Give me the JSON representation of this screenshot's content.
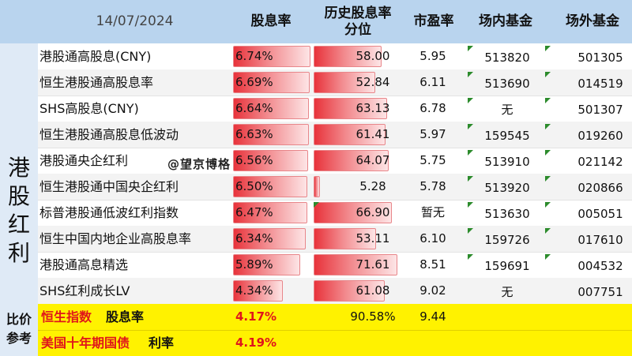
{
  "header": {
    "date": "14/07/2024",
    "col_yield": "股息率",
    "col_pct_line1": "历史股息率",
    "col_pct_line2": "分位",
    "col_pe": "市盈率",
    "col_onsite": "场内基金",
    "col_offsite": "场外基金"
  },
  "side_label": [
    "港",
    "股",
    "红",
    "利"
  ],
  "watermark": "@望京博格",
  "rows": [
    {
      "name": "港股通高股息(CNY)",
      "yield": "6.74%",
      "yield_value": 6.74,
      "pct": "58.00",
      "pct_value": 58.0,
      "pe": "5.95",
      "onsite": "513820",
      "offsite": "501305"
    },
    {
      "name": "恒生港股通高股息率",
      "yield": "6.69%",
      "yield_value": 6.69,
      "pct": "52.84",
      "pct_value": 52.84,
      "pe": "6.11",
      "onsite": "513690",
      "offsite": "014519"
    },
    {
      "name": "SHS高股息(CNY)",
      "yield": "6.64%",
      "yield_value": 6.64,
      "pct": "63.13",
      "pct_value": 63.13,
      "pe": "6.78",
      "onsite": "无",
      "offsite": "501307"
    },
    {
      "name": "恒生港股通高股息低波动",
      "yield": "6.63%",
      "yield_value": 6.63,
      "pct": "61.41",
      "pct_value": 61.41,
      "pe": "5.97",
      "onsite": "159545",
      "offsite": "019260"
    },
    {
      "name": "港股通央企红利",
      "yield": "6.56%",
      "yield_value": 6.56,
      "pct": "64.07",
      "pct_value": 64.07,
      "pe": "5.75",
      "onsite": "513910",
      "offsite": "021142"
    },
    {
      "name": "恒生港股通中国央企红利",
      "yield": "6.50%",
      "yield_value": 6.5,
      "pct": "5.28",
      "pct_value": 5.28,
      "pe": "5.78",
      "onsite": "513920",
      "offsite": "020866"
    },
    {
      "name": "标普港股通低波红利指数",
      "yield": "6.47%",
      "yield_value": 6.47,
      "pct": "66.90",
      "pct_value": 66.9,
      "pe": "暂无",
      "onsite": "513630",
      "offsite": "005051"
    },
    {
      "name": "恒生中国内地企业高股息率",
      "yield": "6.34%",
      "yield_value": 6.34,
      "pct": "53.11",
      "pct_value": 53.11,
      "pe": "6.10",
      "onsite": "159726",
      "offsite": "017610"
    },
    {
      "name": "港股通高息精选",
      "yield": "5.89%",
      "yield_value": 5.89,
      "pct": "71.61",
      "pct_value": 71.61,
      "pe": "8.51",
      "onsite": "159691",
      "offsite": "004532"
    },
    {
      "name": "SHS红利成长LV",
      "yield": "4.34%",
      "yield_value": 4.34,
      "pct": "61.08",
      "pct_value": 61.08,
      "pe": "9.02",
      "onsite": "无",
      "offsite": "007751"
    }
  ],
  "reference": {
    "side_line1": "比价",
    "side_line2": "参考",
    "hsi_name": "恒生指数",
    "hsi_label": "股息率",
    "hsi_yield": "4.17%",
    "hsi_pct": "90.58%",
    "hsi_pe": "9.44",
    "bond_name": "美国十年期国债",
    "bond_label": "利率",
    "bond_rate": "4.19%"
  },
  "colors": {
    "header_bg": "#b9d4ee",
    "side_bg": "#dfeaf6",
    "bar_red": "#e8333b",
    "reference_bg": "#fff200",
    "reference_red": "#e0151b",
    "comment_marker": "#2c8b2c"
  }
}
